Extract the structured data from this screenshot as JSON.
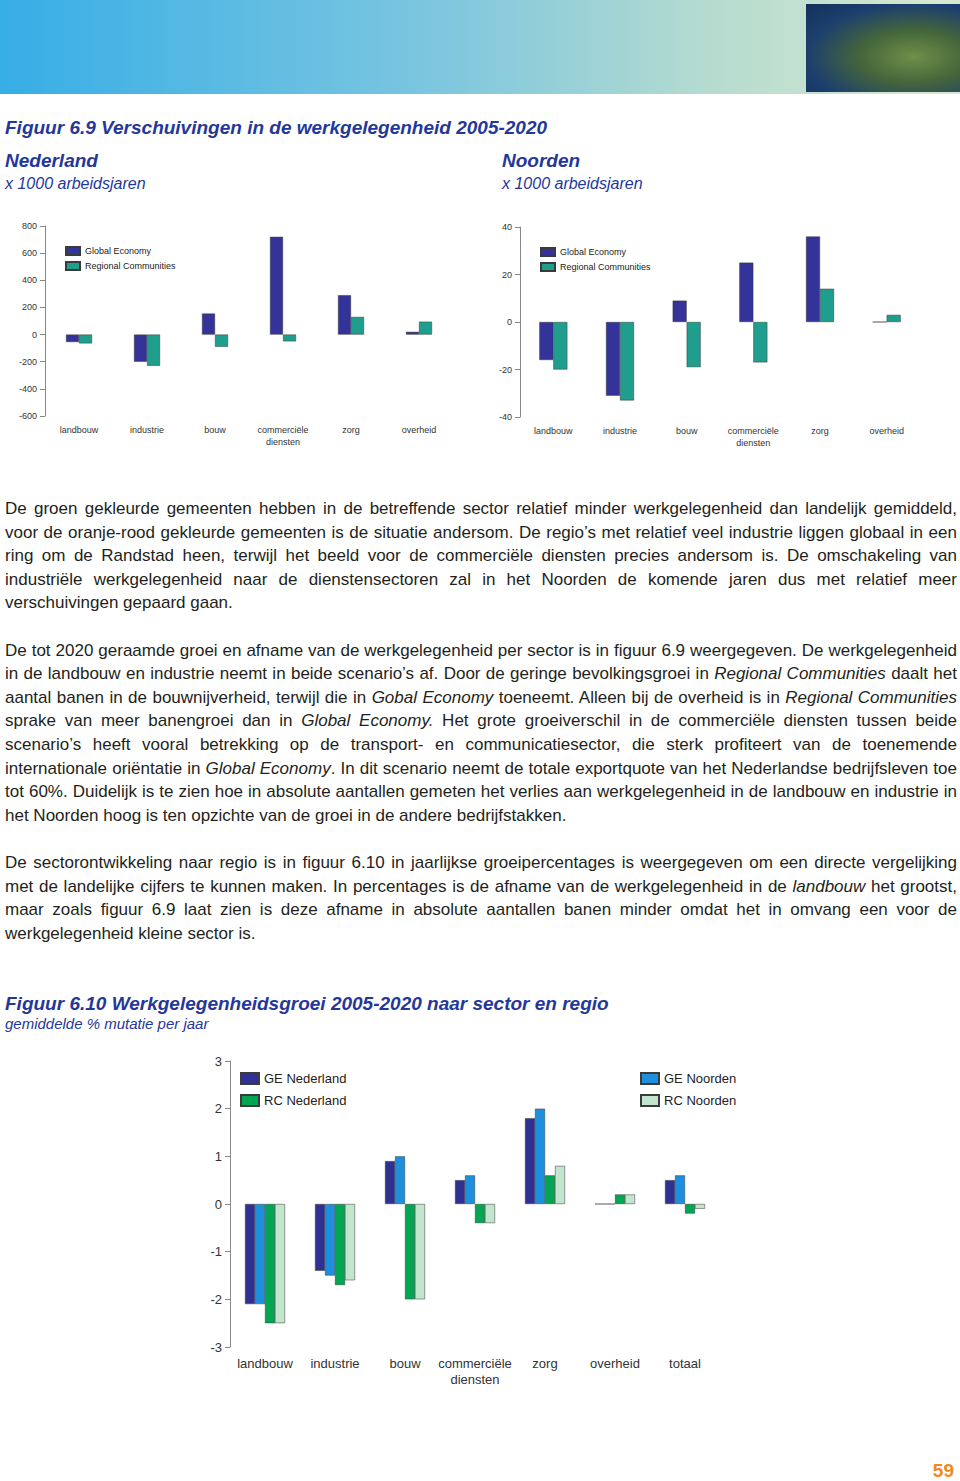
{
  "document": {
    "figure_title": "Figuur 6.9  Verschuivingen in de werkgelegenheid 2005-2020",
    "paragraphs": [
      [
        "De groen gekleurde gemeenten hebben in de betreffende sector relatief minder werkgelegenheid dan landelijk gemiddeld, voor de oranje-rood gekleurde gemeenten is de situatie andersom. De regio’s met relatief veel industrie liggen globaal in een ring om de Randstad heen, terwijl het beeld voor de commerciële diensten precies andersom is. De omschakeling van industriële werkgelegenheid naar de dienstensectoren zal in het Noorden de komende jaren dus met relatief meer verschuivingen gepaard gaan."
      ],
      [
        "De tot 2020 geraamde groei en afname van de werkgelegenheid per sector is in figuur 6.9 weergegeven. De werkgelegenheid in de landbouw en industrie neemt in beide scenario’s af. Door de geringe bevolkingsgroei in ",
        {
          "text": "Regional Communities",
          "italic": true
        },
        " daalt het aantal banen in de bouwnijverheid, terwijl die in ",
        {
          "text": "Gobal Economy",
          "italic": true
        },
        " toeneemt. Alleen bij de overheid is in ",
        {
          "text": "Regional Communities",
          "italic": true
        },
        " sprake van meer banengroei dan in ",
        {
          "text": "Global Economy.",
          "italic": true
        },
        " Het grote groeiverschil in de commerciële diensten tussen beide scenario’s heeft vooral betrekking op de transport- en communicatiesector, die sterk profiteert van de toenemende internationale oriëntatie in ",
        {
          "text": "Global Economy",
          "italic": true
        },
        ". In dit scenario neemt de totale exportquote van het Nederlandse bedrijfsleven toe tot 60%. Duidelijk is te zien hoe in absolute aantallen gemeten het verlies aan werkgelegenheid in de landbouw en industrie in het Noorden hoog is ten opzichte van de groei in de andere bedrijfstakken."
      ],
      [
        "De sectorontwikkeling naar regio is in figuur 6.10 in jaarlijkse groeipercentages is weergegeven om een directe vergelijking met de landelijke cijfers te kunnen maken. In percentages is de afname van de werkgelegenheid in de ",
        {
          "text": "landbouw",
          "italic": true
        },
        " het grootst, maar zoals figuur 6.9 laat zien is deze afname in absolute aantallen banen minder omdat het in omvang een voor de werkgelegenheid kleine sector is."
      ]
    ],
    "page_number": "59"
  },
  "chart_data": [
    {
      "type": "bar",
      "title": "Nederland",
      "subtitle": "x 1000 arbeidsjaren",
      "categories": [
        "landbouw",
        "industrie",
        "bouw",
        "commerciële diensten",
        "zorg",
        "overheid"
      ],
      "series": [
        {
          "name": "Global Economy",
          "color": "#333399",
          "values": [
            -55,
            -200,
            155,
            720,
            290,
            20
          ]
        },
        {
          "name": "Regional Communities",
          "color": "#1f9e8e",
          "values": [
            -65,
            -230,
            -90,
            -50,
            130,
            95
          ]
        }
      ],
      "ylim": [
        -600,
        800
      ],
      "yticks": [
        -600,
        -400,
        -200,
        0,
        200,
        400,
        600,
        800
      ],
      "grid": false,
      "legend": "upper left"
    },
    {
      "type": "bar",
      "title": "Noorden",
      "subtitle": "x 1000 arbeidsjaren",
      "categories": [
        "landbouw",
        "industrie",
        "bouw",
        "commerciële diensten",
        "zorg",
        "overheid"
      ],
      "series": [
        {
          "name": "Global Economy",
          "color": "#333399",
          "values": [
            -16,
            -31,
            9,
            25,
            36,
            0
          ]
        },
        {
          "name": "Regional Communities",
          "color": "#1f9e8e",
          "values": [
            -20,
            -33,
            -19,
            -17,
            14,
            3
          ]
        }
      ],
      "ylim": [
        -40,
        40
      ],
      "yticks": [
        -40,
        -20,
        0,
        20,
        40
      ],
      "grid": false,
      "legend": "upper left"
    },
    {
      "type": "bar",
      "title": "Figuur 6.10  Werkgelegenheidsgroei 2005-2020 naar sector en regio",
      "subtitle": "gemiddelde % mutatie per jaar",
      "categories": [
        "landbouw",
        "industrie",
        "bouw",
        "commerciële diensten",
        "zorg",
        "overheid",
        "totaal"
      ],
      "series": [
        {
          "name": "GE Nederland",
          "color": "#2e3192",
          "values": [
            -2.1,
            -1.4,
            0.9,
            0.5,
            1.8,
            0,
            0.5
          ]
        },
        {
          "name": "GE Noorden",
          "color": "#1e8fdc",
          "values": [
            -2.1,
            -1.5,
            1.0,
            0.6,
            2.0,
            0,
            0.6
          ]
        },
        {
          "name": "RC Nederland",
          "color": "#00a651",
          "values": [
            -2.5,
            -1.7,
            -2.0,
            -0.4,
            0.6,
            0.2,
            -0.2
          ]
        },
        {
          "name": "RC Noorden",
          "color": "#c2e5cd",
          "values": [
            -2.5,
            -1.6,
            -2.0,
            -0.4,
            0.8,
            0.2,
            -0.1
          ]
        }
      ],
      "ylim": [
        -3,
        3
      ],
      "yticks": [
        -3,
        -2,
        -1,
        0,
        1,
        2,
        3
      ],
      "grid": false,
      "legend": "top"
    }
  ]
}
